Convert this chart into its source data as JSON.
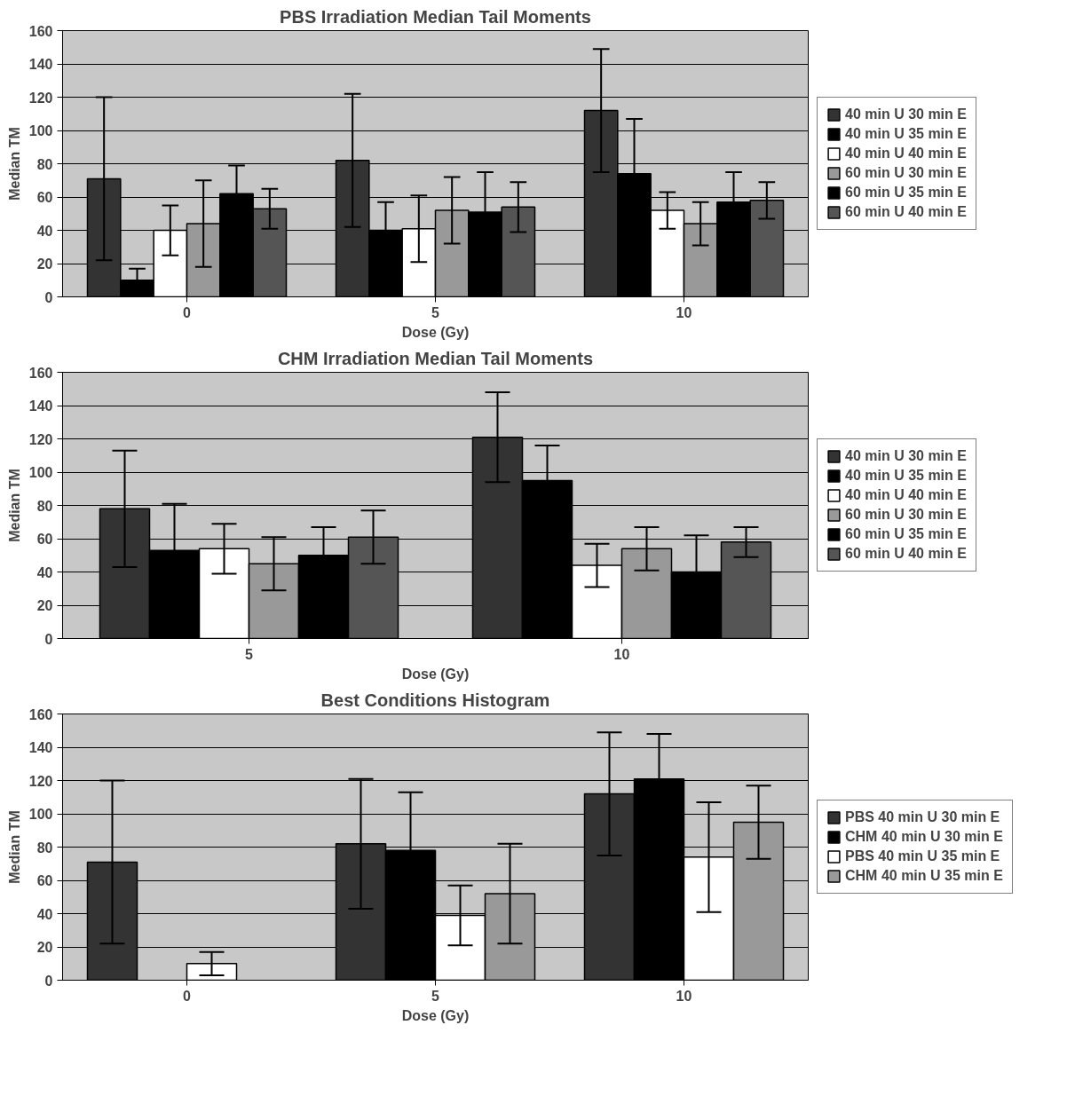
{
  "chart_data": [
    {
      "type": "bar",
      "title": "PBS Irradiation Median Tail Moments",
      "xlabel": "Dose (Gy)",
      "ylabel": "Median TM",
      "categories": [
        "0",
        "5",
        "10"
      ],
      "ylim": [
        0,
        160
      ],
      "yticks": [
        0,
        20,
        40,
        60,
        80,
        100,
        120,
        140,
        160
      ],
      "grid": "y",
      "legend": "right",
      "series": [
        {
          "name": "40 min U 30 min E",
          "color": "#333333",
          "values": [
            71,
            82,
            112
          ],
          "errors": [
            49,
            40,
            37
          ]
        },
        {
          "name": "40 min U 35 min E",
          "color": "#000000",
          "values": [
            10,
            40,
            74
          ],
          "errors": [
            7,
            17,
            33
          ]
        },
        {
          "name": "40 min U 40 min E",
          "color": "#ffffff",
          "values": [
            40,
            41,
            52
          ],
          "errors": [
            15,
            20,
            11
          ]
        },
        {
          "name": "60 min U 30 min E",
          "color": "#999999",
          "values": [
            44,
            52,
            44
          ],
          "errors": [
            26,
            20,
            13
          ]
        },
        {
          "name": "60 min U 35 min E",
          "color": "#000000",
          "values": [
            62,
            51,
            57
          ],
          "errors": [
            17,
            24,
            18
          ]
        },
        {
          "name": "60 min U 40 min E",
          "color": "#555555",
          "values": [
            53,
            54,
            58
          ],
          "errors": [
            12,
            15,
            11
          ]
        }
      ]
    },
    {
      "type": "bar",
      "title": "CHM Irradiation Median Tail Moments",
      "xlabel": "Dose (Gy)",
      "ylabel": "Median TM",
      "categories": [
        "5",
        "10"
      ],
      "ylim": [
        0,
        160
      ],
      "yticks": [
        0,
        20,
        40,
        60,
        80,
        100,
        120,
        140,
        160
      ],
      "grid": "y",
      "legend": "right",
      "series": [
        {
          "name": "40 min U 30 min E",
          "color": "#333333",
          "values": [
            78,
            121
          ],
          "errors": [
            35,
            27
          ]
        },
        {
          "name": "40 min U 35 min E",
          "color": "#000000",
          "values": [
            53,
            95
          ],
          "errors": [
            28,
            21
          ]
        },
        {
          "name": "40 min U 40 min E",
          "color": "#ffffff",
          "values": [
            54,
            44
          ],
          "errors": [
            15,
            13
          ]
        },
        {
          "name": "60 min U 30 min E",
          "color": "#999999",
          "values": [
            45,
            54
          ],
          "errors": [
            16,
            13
          ]
        },
        {
          "name": "60 min U 35 min E",
          "color": "#000000",
          "values": [
            50,
            40
          ],
          "errors": [
            17,
            22
          ]
        },
        {
          "name": "60 min U 40 min E",
          "color": "#555555",
          "values": [
            61,
            58
          ],
          "errors": [
            16,
            9
          ]
        }
      ]
    },
    {
      "type": "bar",
      "title": "Best Conditions Histogram",
      "xlabel": "Dose (Gy)",
      "ylabel": "Median TM",
      "categories": [
        "0",
        "5",
        "10"
      ],
      "ylim": [
        0,
        160
      ],
      "yticks": [
        0,
        20,
        40,
        60,
        80,
        100,
        120,
        140,
        160
      ],
      "grid": "y",
      "legend": "right",
      "series": [
        {
          "name": "PBS 40 min U 30 min E",
          "color": "#333333",
          "values": [
            71,
            82,
            112
          ],
          "errors": [
            49,
            39,
            37
          ]
        },
        {
          "name": "CHM 40 min U 30 min E",
          "color": "#000000",
          "values": [
            null,
            78,
            121
          ],
          "errors": [
            null,
            35,
            27
          ]
        },
        {
          "name": "PBS 40 min U 35 min E",
          "color": "#ffffff",
          "values": [
            10,
            39,
            74
          ],
          "errors": [
            7,
            18,
            33
          ]
        },
        {
          "name": "CHM 40 min U 35 min E",
          "color": "#999999",
          "values": [
            null,
            52,
            95
          ],
          "errors": [
            null,
            30,
            22
          ]
        }
      ]
    }
  ]
}
